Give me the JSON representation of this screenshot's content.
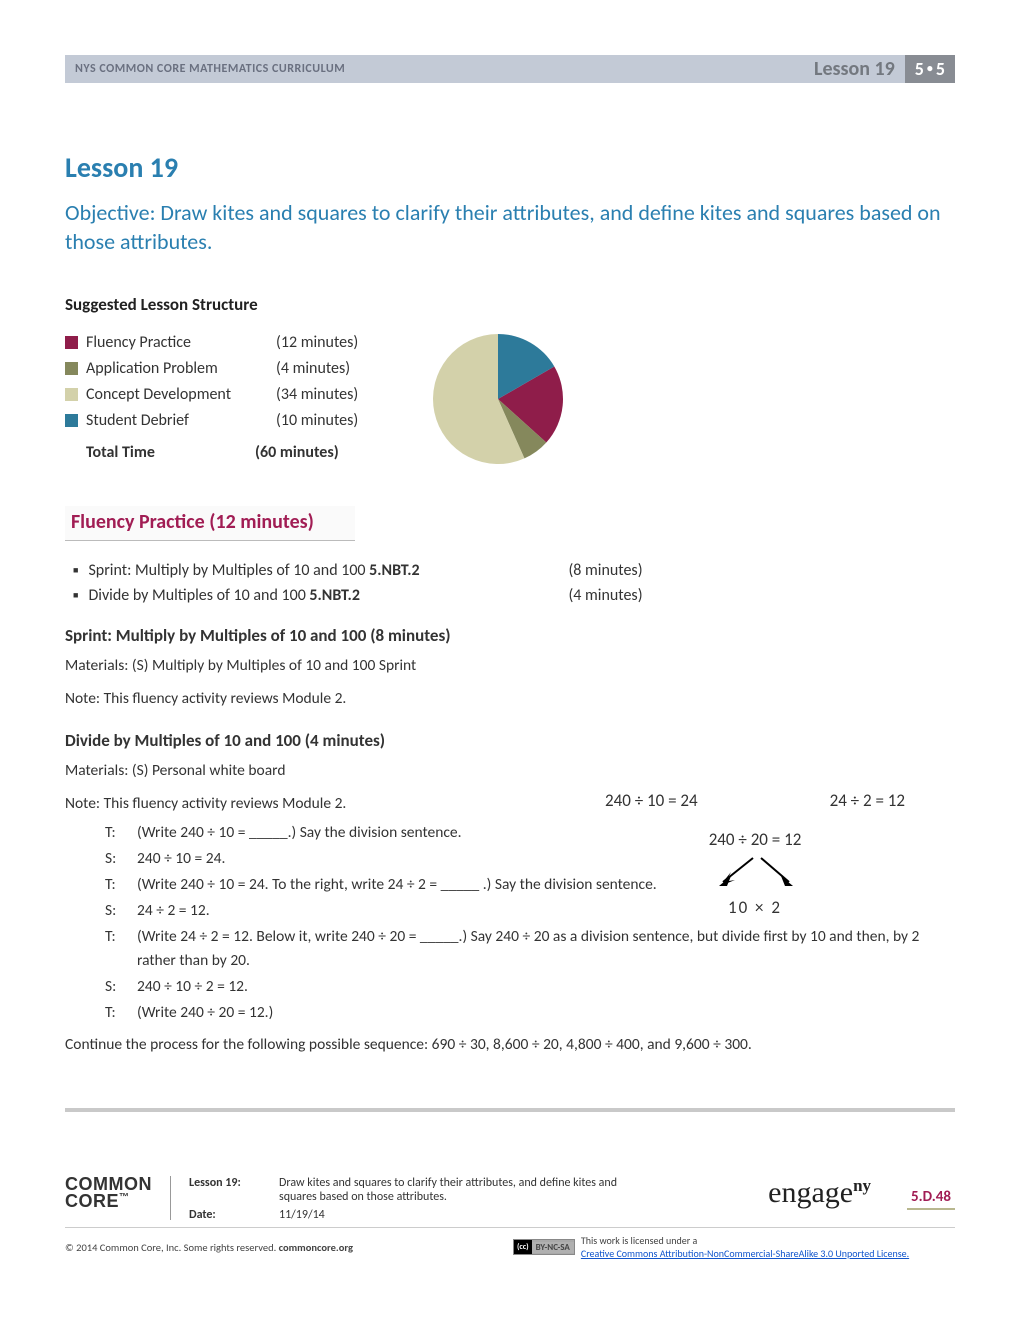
{
  "header": {
    "curriculum": "NYS COMMON CORE MATHEMATICS CURRICULUM",
    "lesson_label": "Lesson 19",
    "module_badge": "5•5"
  },
  "title": "Lesson 19",
  "objective": "Objective:  Draw kites and squares to clarify their attributes, and define kites and squares based on those attributes.",
  "structure": {
    "heading": "Suggested Lesson Structure",
    "rows": [
      {
        "label": "Fluency Practice",
        "time": "(12 minutes)",
        "color": "#8f1d4a",
        "value": 12
      },
      {
        "label": "Application Problem",
        "time": "(4 minutes)",
        "color": "#85885c",
        "value": 4
      },
      {
        "label": "Concept Development",
        "time": "(34 minutes)",
        "color": "#d3d1aa",
        "value": 34
      },
      {
        "label": "Student Debrief",
        "time": "(10 minutes)",
        "color": "#2d7a9a",
        "value": 10
      }
    ],
    "total_label": "Total Time",
    "total_time": "(60 minutes)"
  },
  "pie": {
    "radius": 65,
    "background": "#ffffff",
    "start_angle_deg": -30,
    "slices": [
      {
        "color": "#8f1d4a",
        "value": 12
      },
      {
        "color": "#85885c",
        "value": 4
      },
      {
        "color": "#d3d1aa",
        "value": 34
      },
      {
        "color": "#2d7a9a",
        "value": 10
      }
    ]
  },
  "fluency_heading": "Fluency Practice  (12 minutes)",
  "fluency_bullets": [
    {
      "text": "Sprint:  Multiply by Multiples of 10 and 100  ",
      "std": "5.NBT.2",
      "time": "(8 minutes)"
    },
    {
      "text": "Divide by Multiples of 10 and 100  ",
      "std": "5.NBT.2",
      "time": "(4 minutes)"
    }
  ],
  "section1": {
    "heading": "Sprint:  Multiply by Multiples of 10 and 100  (8 minutes)",
    "materials": "Materials:    (S) Multiply by Multiples of 10 and 100 Sprint",
    "note": "Note:  This fluency activity reviews Module 2."
  },
  "section2": {
    "heading": "Divide by Multiples of 10 and 100  (4 minutes)",
    "materials": "Materials:    (S) Personal white board",
    "note": "Note:  This fluency activity reviews Module 2.",
    "dialogue": [
      {
        "who": "T:",
        "what": "(Write 240 ÷ 10 = _____.)  Say the division sentence."
      },
      {
        "who": "S:",
        "what": "240 ÷ 10 = 24."
      },
      {
        "who": "T:",
        "what": "(Write 240 ÷ 10 = 24.  To the right, write 24 ÷ 2 = _____ .)  Say the division sentence."
      },
      {
        "who": "S:",
        "what": "24 ÷ 2 = 12."
      },
      {
        "who": "T:",
        "what": "(Write 24 ÷ 2 = 12.  Below it, write 240 ÷ 20 = _____.)  Say 240 ÷ 20 as a division sentence, but divide first by 10 and then, by 2 rather than by 20."
      },
      {
        "who": "S:",
        "what": "240 ÷ 10 ÷ 2 = 12."
      },
      {
        "who": "T:",
        "what": "(Write 240 ÷ 20 = 12.)"
      }
    ],
    "closing": "Continue the process for the following possible sequence:  690 ÷ 30, 8,600 ÷ 20, 4,800 ÷ 400, and 9,600 ÷ 300."
  },
  "side_math": {
    "eq1": "240 ÷ 10 = 24",
    "eq2": "24 ÷ 2 = 12",
    "eq3": "240 ÷ 20 = 12",
    "bottom": "10    ×    2"
  },
  "footer": {
    "logo1_line1": "COMMON",
    "logo1_line2": "CORE",
    "lesson_key": "Lesson 19:",
    "lesson_val": "Draw kites and squares to clarify their attributes, and define kites and squares based on those attributes.",
    "date_key": "Date:",
    "date_val": "11/19/14",
    "engage": "engage",
    "engage_sup": "ny",
    "page": "5.D.48",
    "copyright": "© 2014 Common Core, Inc. Some rights reserved. ",
    "copyright_bold": "commoncore.org",
    "cc_badge_left": "(cc)",
    "cc_badge_right": "BY-NC-SA",
    "license_pre": "This work is licensed under a ",
    "license_link": "Creative Commons Attribution-NonCommercial-ShareAlike 3.0 Unported License."
  }
}
